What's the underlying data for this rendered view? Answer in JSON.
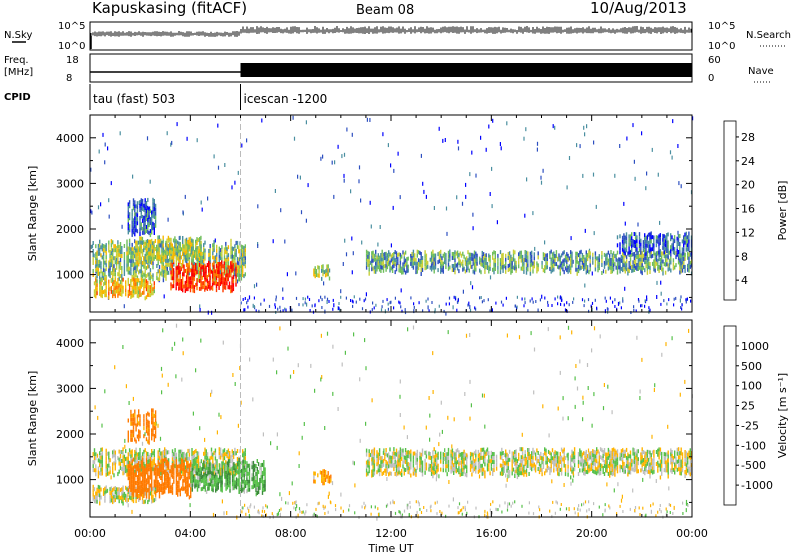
{
  "header": {
    "station": "Kapuskasing (fitACF)",
    "beam": "Beam 08",
    "date": "10/Aug/2013"
  },
  "panel_labels": {
    "nsky": "N.Sky",
    "nsearch": "N.Search",
    "freq_line1": "Freq.",
    "freq_line2": "[MHz]",
    "nave": "Nave",
    "cpid": "CPID"
  },
  "cpid_segments": [
    {
      "label": "tau (fast) 503",
      "start_hour": 0,
      "end_hour": 6
    },
    {
      "label": "icescan -1200",
      "start_hour": 6,
      "end_hour": 24
    }
  ],
  "noise_ticks": {
    "left": [
      "10^5",
      "10^0"
    ],
    "right": [
      "10^5",
      "10^0"
    ]
  },
  "freq_ticks": {
    "left": [
      "18",
      "8"
    ],
    "right": [
      "60",
      "0"
    ]
  },
  "chart_data": [
    {
      "type": "heatmap",
      "panel": "power",
      "xlabel": "Time UT",
      "ylabel": "Slant Range [km]",
      "x_ticks": [
        "00:00",
        "04:00",
        "08:00",
        "12:00",
        "16:00",
        "20:00",
        "00:00"
      ],
      "xlim_hours": [
        0,
        24
      ],
      "ylim": [
        180,
        4500
      ],
      "y_ticks": [
        1000,
        2000,
        3000,
        4000
      ],
      "colorbar": {
        "label": "Power [dB]",
        "ticks": [
          "4",
          "8",
          "12",
          "16",
          "20",
          "24",
          "28"
        ],
        "range": [
          0,
          30
        ],
        "colors": [
          "#0000ff",
          "#2d4fc0",
          "#4a8fa0",
          "#6fbe5c",
          "#c9cf38",
          "#f7b800",
          "#ff7a00",
          "#ff3a00",
          "#ff0000"
        ]
      },
      "regions": [
        {
          "t0": 0.1,
          "t1": 6.2,
          "r0": 950,
          "r1": 1700,
          "level": 12
        },
        {
          "t0": 0.1,
          "t1": 2.6,
          "r0": 550,
          "r1": 900,
          "level": 18
        },
        {
          "t0": 3.2,
          "t1": 5.8,
          "r0": 700,
          "r1": 1250,
          "level": 26
        },
        {
          "t0": 1.8,
          "t1": 4.4,
          "r0": 1300,
          "r1": 1800,
          "level": 14
        },
        {
          "t0": 1.5,
          "t1": 2.6,
          "r0": 1900,
          "r1": 2600,
          "level": 6
        },
        {
          "t0": 8.9,
          "t1": 9.6,
          "r0": 950,
          "r1": 1200,
          "level": 14
        },
        {
          "t0": 11.0,
          "t1": 24.0,
          "r0": 1100,
          "r1": 1500,
          "level": 10
        },
        {
          "t0": 21.0,
          "t1": 24.0,
          "r0": 1500,
          "r1": 1900,
          "level": 6
        }
      ]
    },
    {
      "type": "heatmap",
      "panel": "velocity",
      "xlabel": "Time UT",
      "ylabel": "Slant Range [km]",
      "x_ticks": [
        "00:00",
        "04:00",
        "08:00",
        "12:00",
        "16:00",
        "20:00",
        "00:00"
      ],
      "xlim_hours": [
        0,
        24
      ],
      "ylim": [
        180,
        4500
      ],
      "y_ticks": [
        1000,
        2000,
        3000,
        4000
      ],
      "colorbar": {
        "label": "Velocity [m s⁻¹]",
        "ticks": [
          "1000",
          "500",
          "100",
          "25",
          "-25",
          "-100",
          "-500",
          "-1000"
        ],
        "colors": [
          "#0a2aa0",
          "#2c5dbf",
          "#3b8b3b",
          "#56c04a",
          "#bfbfbf",
          "#ffb400",
          "#ff7a00",
          "#ff3a00",
          "#ff0000"
        ]
      },
      "regions": [
        {
          "t0": 0.1,
          "t1": 6.2,
          "r0": 1150,
          "r1": 1650,
          "level": 0
        },
        {
          "t0": 0.1,
          "t1": 2.6,
          "r0": 550,
          "r1": 850,
          "level": 0
        },
        {
          "t0": 1.5,
          "t1": 4.0,
          "r0": 700,
          "r1": 1400,
          "level": -300
        },
        {
          "t0": 4.0,
          "t1": 7.0,
          "r0": 800,
          "r1": 1400,
          "level": 80
        },
        {
          "t0": 8.9,
          "t1": 9.6,
          "r0": 950,
          "r1": 1200,
          "level": -80
        },
        {
          "t0": 11.0,
          "t1": 24.0,
          "r0": 1150,
          "r1": 1650,
          "level": 0
        },
        {
          "t0": 1.5,
          "t1": 2.6,
          "r0": 1900,
          "r1": 2500,
          "level": -150
        }
      ]
    }
  ]
}
